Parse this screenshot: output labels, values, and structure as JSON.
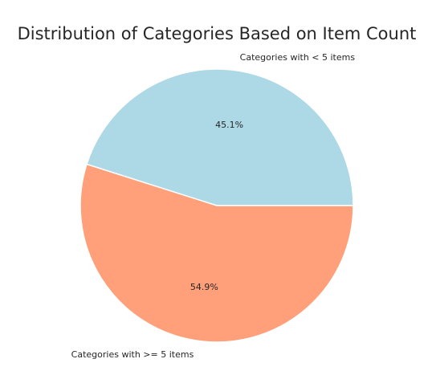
{
  "chart_data": {
    "type": "pie",
    "title": "Distribution of Categories Based on Item Count",
    "slices": [
      {
        "label": "Categories with < 5 items",
        "value": 45.1,
        "pct_label": "45.1%",
        "color": "#ADD8E6"
      },
      {
        "label": "Categories with >= 5 items",
        "value": 54.9,
        "pct_label": "54.9%",
        "color": "#FFA07A"
      }
    ],
    "start_angle_deg": 0,
    "direction": "counterclockwise",
    "legend": "none"
  }
}
